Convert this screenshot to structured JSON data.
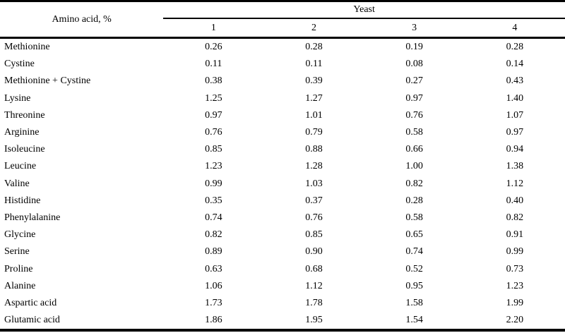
{
  "table": {
    "row_header_label": "Amino acid, %",
    "group_header_label": "Yeast",
    "yeast_columns": [
      "1",
      "2",
      "3",
      "4"
    ],
    "rows": [
      {
        "name": "Methionine",
        "values": [
          "0.26",
          "0.28",
          "0.19",
          "0.28"
        ]
      },
      {
        "name": "Cystine",
        "values": [
          "0.11",
          "0.11",
          "0.08",
          "0.14"
        ]
      },
      {
        "name": "Methionine + Cystine",
        "values": [
          "0.38",
          "0.39",
          "0.27",
          "0.43"
        ]
      },
      {
        "name": "Lysine",
        "values": [
          "1.25",
          "1.27",
          "0.97",
          "1.40"
        ]
      },
      {
        "name": "Threonine",
        "values": [
          "0.97",
          "1.01",
          "0.76",
          "1.07"
        ]
      },
      {
        "name": "Arginine",
        "values": [
          "0.76",
          "0.79",
          "0.58",
          "0.97"
        ]
      },
      {
        "name": "Isoleucine",
        "values": [
          "0.85",
          "0.88",
          "0.66",
          "0.94"
        ]
      },
      {
        "name": "Leucine",
        "values": [
          "1.23",
          "1.28",
          "1.00",
          "1.38"
        ]
      },
      {
        "name": "Valine",
        "values": [
          "0.99",
          "1.03",
          "0.82",
          "1.12"
        ]
      },
      {
        "name": "Histidine",
        "values": [
          "0.35",
          "0.37",
          "0.28",
          "0.40"
        ]
      },
      {
        "name": "Phenylalanine",
        "values": [
          "0.74",
          "0.76",
          "0.58",
          "0.82"
        ]
      },
      {
        "name": "Glycine",
        "values": [
          "0.82",
          "0.85",
          "0.65",
          "0.91"
        ]
      },
      {
        "name": "Serine",
        "values": [
          "0.89",
          "0.90",
          "0.74",
          "0.99"
        ]
      },
      {
        "name": "Proline",
        "values": [
          "0.63",
          "0.68",
          "0.52",
          "0.73"
        ]
      },
      {
        "name": "Alanine",
        "values": [
          "1.06",
          "1.12",
          "0.95",
          "1.23"
        ]
      },
      {
        "name": "Aspartic acid",
        "values": [
          "1.73",
          "1.78",
          "1.58",
          "1.99"
        ]
      },
      {
        "name": "Glutamic acid",
        "values": [
          "1.86",
          "1.95",
          "1.54",
          "2.20"
        ]
      }
    ]
  },
  "colors": {
    "rule": "#000000",
    "text": "#000000",
    "background": "#ffffff"
  }
}
